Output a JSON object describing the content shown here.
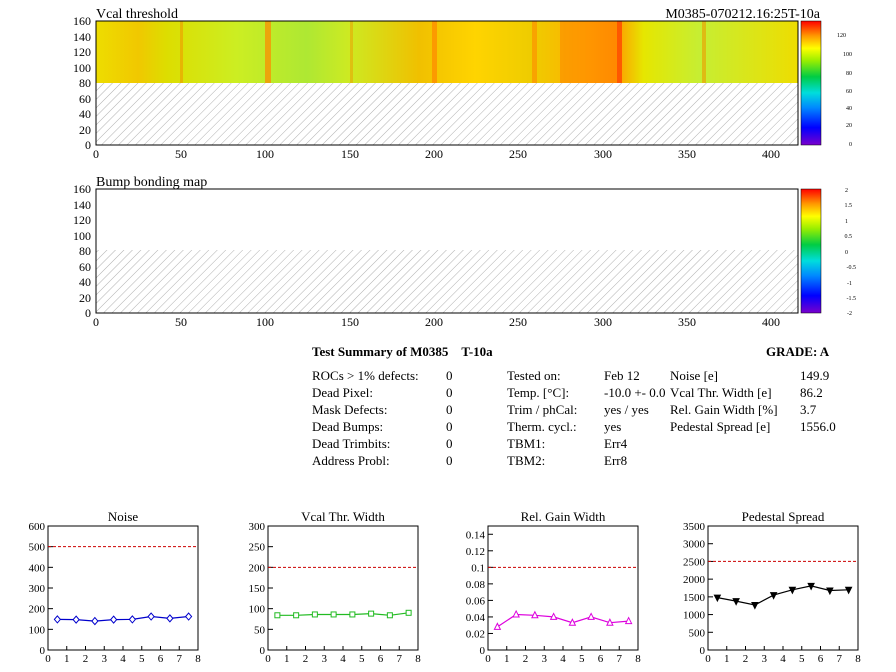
{
  "maps": [
    {
      "title": "Vcal threshold",
      "module_label": "M0385-070212.16:25T-10a",
      "x_ticks": [
        "0",
        "50",
        "100",
        "150",
        "200",
        "250",
        "300",
        "350",
        "400"
      ],
      "y_ticks": [
        "0",
        "20",
        "40",
        "60",
        "80",
        "100",
        "120",
        "140",
        "160"
      ],
      "colorbar_ticks": [
        "0",
        "20",
        "40",
        "60",
        "80",
        "100",
        "120"
      ]
    },
    {
      "title": "Bump bonding map",
      "module_label": "",
      "x_ticks": [
        "0",
        "50",
        "100",
        "150",
        "200",
        "250",
        "300",
        "350",
        "400"
      ],
      "y_ticks": [
        "0",
        "20",
        "40",
        "60",
        "80",
        "100",
        "120",
        "140",
        "160"
      ],
      "colorbar_ticks": [
        "-2",
        "-1.5",
        "-1",
        "-0.5",
        "0",
        "0.5",
        "1",
        "1.5",
        "2"
      ]
    }
  ],
  "summary": {
    "title": "Test Summary of M0385",
    "temp_label": "T-10a",
    "grade": "GRADE:  A",
    "defects": [
      {
        "label": "ROCs > 1% defects:",
        "value": "0"
      },
      {
        "label": "Dead Pixel:",
        "value": "0"
      },
      {
        "label": "Mask Defects:",
        "value": "0"
      },
      {
        "label": "Dead Bumps:",
        "value": "0"
      },
      {
        "label": "Dead Trimbits:",
        "value": "0"
      },
      {
        "label": "Address Probl:",
        "value": "0"
      }
    ],
    "conditions": [
      {
        "label": "Tested on:",
        "value": "Feb 12"
      },
      {
        "label": "Temp. [°C]:",
        "value": "-10.0 +- 0.0"
      },
      {
        "label": "Trim / phCal:",
        "value": "yes / yes"
      },
      {
        "label": "Therm. cycl.:",
        "value": "yes"
      },
      {
        "label": "TBM1:",
        "value": "Err4"
      },
      {
        "label": "TBM2:",
        "value": "Err8"
      }
    ],
    "results": [
      {
        "label": "Noise [e]",
        "value": "149.9"
      },
      {
        "label": "Vcal Thr. Width [e]",
        "value": "86.2"
      },
      {
        "label": "Rel. Gain Width [%]",
        "value": "3.7"
      },
      {
        "label": "Pedestal Spread [e]",
        "value": "1556.0"
      }
    ]
  },
  "chart_data": [
    {
      "type": "line",
      "title": "Noise",
      "color": "#0000cc",
      "marker": "diamond",
      "x": [
        0.5,
        1.5,
        2.5,
        3.5,
        4.5,
        5.5,
        6.5,
        7.5
      ],
      "values": [
        148,
        147,
        140,
        147,
        148,
        162,
        153,
        162
      ],
      "xlim": [
        0,
        8
      ],
      "ylim": [
        0,
        600
      ],
      "threshold": 500,
      "x_ticks": [
        "0",
        "1",
        "2",
        "3",
        "4",
        "5",
        "6",
        "7",
        "8"
      ],
      "y_ticks": [
        "0",
        "100",
        "200",
        "300",
        "400",
        "500",
        "600"
      ]
    },
    {
      "type": "line",
      "title": "Vcal Thr. Width",
      "color": "#22bb22",
      "marker": "square",
      "x": [
        0.5,
        1.5,
        2.5,
        3.5,
        4.5,
        5.5,
        6.5,
        7.5
      ],
      "values": [
        84,
        84,
        86,
        86,
        86,
        88,
        84,
        90
      ],
      "xlim": [
        0,
        8
      ],
      "ylim": [
        0,
        300
      ],
      "threshold": 200,
      "x_ticks": [
        "0",
        "1",
        "2",
        "3",
        "4",
        "5",
        "6",
        "7",
        "8"
      ],
      "y_ticks": [
        "0",
        "50",
        "100",
        "150",
        "200",
        "250",
        "300"
      ]
    },
    {
      "type": "line",
      "title": "Rel. Gain Width",
      "color": "#dd00dd",
      "marker": "triangle-up",
      "x": [
        0.5,
        1.5,
        2.5,
        3.5,
        4.5,
        5.5,
        6.5,
        7.5
      ],
      "values": [
        0.028,
        0.043,
        0.042,
        0.04,
        0.033,
        0.04,
        0.033,
        0.035
      ],
      "xlim": [
        0,
        8
      ],
      "ylim": [
        0,
        0.15
      ],
      "threshold": 0.1,
      "x_ticks": [
        "0",
        "1",
        "2",
        "3",
        "4",
        "5",
        "6",
        "7",
        "8"
      ],
      "y_ticks": [
        "0",
        "0.02",
        "0.04",
        "0.06",
        "0.08",
        "0.1",
        "0.12",
        "0.14"
      ]
    },
    {
      "type": "line",
      "title": "Pedestal Spread",
      "color": "#000000",
      "marker": "triangle-down",
      "x": [
        0.5,
        1.5,
        2.5,
        3.5,
        4.5,
        5.5,
        6.5,
        7.5
      ],
      "values": [
        1480,
        1380,
        1270,
        1550,
        1700,
        1810,
        1680,
        1700
      ],
      "xlim": [
        0,
        8
      ],
      "ylim": [
        0,
        3500
      ],
      "threshold": 2500,
      "x_ticks": [
        "0",
        "1",
        "2",
        "3",
        "4",
        "5",
        "6",
        "7",
        "8"
      ],
      "y_ticks": [
        "0",
        "500",
        "1000",
        "1500",
        "2000",
        "2500",
        "3000",
        "3500"
      ]
    }
  ]
}
